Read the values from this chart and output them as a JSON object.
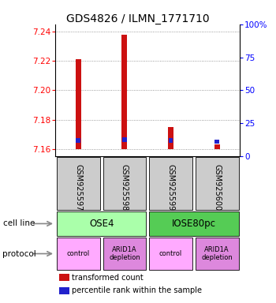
{
  "title": "GDS4826 / ILMN_1771710",
  "samples": [
    "GSM925597",
    "GSM925598",
    "GSM925599",
    "GSM925600"
  ],
  "red_values": [
    7.221,
    7.238,
    7.175,
    7.163
  ],
  "blue_values": [
    7.1645,
    7.165,
    7.1645,
    7.1635
  ],
  "baseline": 7.16,
  "ylim_left": [
    7.155,
    7.245
  ],
  "ylim_right": [
    0,
    100
  ],
  "yticks_left": [
    7.16,
    7.18,
    7.2,
    7.22,
    7.24
  ],
  "yticks_right": [
    0,
    25,
    50,
    75,
    100
  ],
  "ytick_labels_right": [
    "0",
    "25",
    "50",
    "75",
    "100%"
  ],
  "cell_lines": [
    [
      "OSE4",
      0,
      1
    ],
    [
      "IOSE80pc",
      2,
      3
    ]
  ],
  "protocols": [
    [
      "control",
      0
    ],
    [
      "ARID1A\ndepletion",
      1
    ],
    [
      "control",
      2
    ],
    [
      "ARID1A\ndepletion",
      3
    ]
  ],
  "cell_line_colors": [
    "#aaffaa",
    "#55cc55"
  ],
  "protocol_colors": [
    "#ffaaff",
    "#dd88dd"
  ],
  "sample_box_color": "#cccccc",
  "bar_color_red": "#cc1111",
  "bar_color_blue": "#2222cc",
  "title_fontsize": 10,
  "bar_width": 0.12,
  "blue_bar_width": 0.1,
  "blue_bar_height": 0.003,
  "legend_red_label": "transformed count",
  "legend_blue_label": "percentile rank within the sample"
}
